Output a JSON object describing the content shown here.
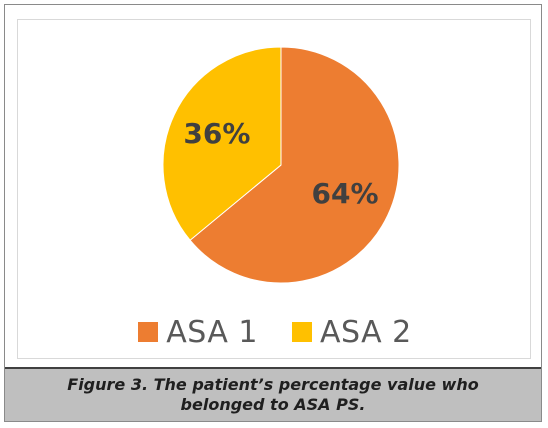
{
  "chart_data": {
    "type": "pie",
    "categories": [
      "ASA 1",
      "ASA 2"
    ],
    "values": [
      64,
      36
    ],
    "labels": [
      "64%",
      "36%"
    ],
    "colors": [
      "#ED7D31",
      "#FFC000"
    ],
    "legend_position": "bottom"
  },
  "caption": {
    "line1": "Figure 3. The patient’s percentage value who",
    "line2": "belonged to ASA PS."
  }
}
